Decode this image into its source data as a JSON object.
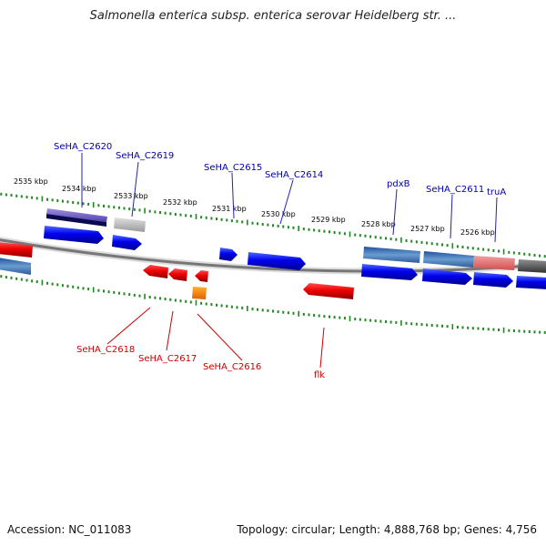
{
  "title": "Salmonella enterica subsp. enterica serovar Heidelberg str. ...",
  "footer": {
    "accession": "Accession: NC_011083",
    "topology": "Topology: circular; Length: 4,888,768 bp; Genes: 4,756"
  },
  "kbp_labels": [
    "2535 kbp",
    "2534 kbp",
    "2533 kbp",
    "2532 kbp",
    "2531 kbp",
    "2530 kbp",
    "2529 kbp",
    "2528 kbp",
    "2527 kbp",
    "2526 kbp"
  ],
  "genes_top": [
    "SeHA_C2620",
    "SeHA_C2619",
    "SeHA_C2615",
    "SeHA_C2614",
    "pdxB",
    "SeHA_C2611",
    "truA"
  ],
  "genes_bottom": [
    "SeHA_C2618",
    "SeHA_C2617",
    "SeHA_C2616",
    "flk"
  ],
  "colors": {
    "forward": "#0000ee",
    "reverse": "#ee0000",
    "backbone": "#888888",
    "ticks": "#228822",
    "label_forward": "#0000aa",
    "label_reverse": "#cc0000"
  }
}
